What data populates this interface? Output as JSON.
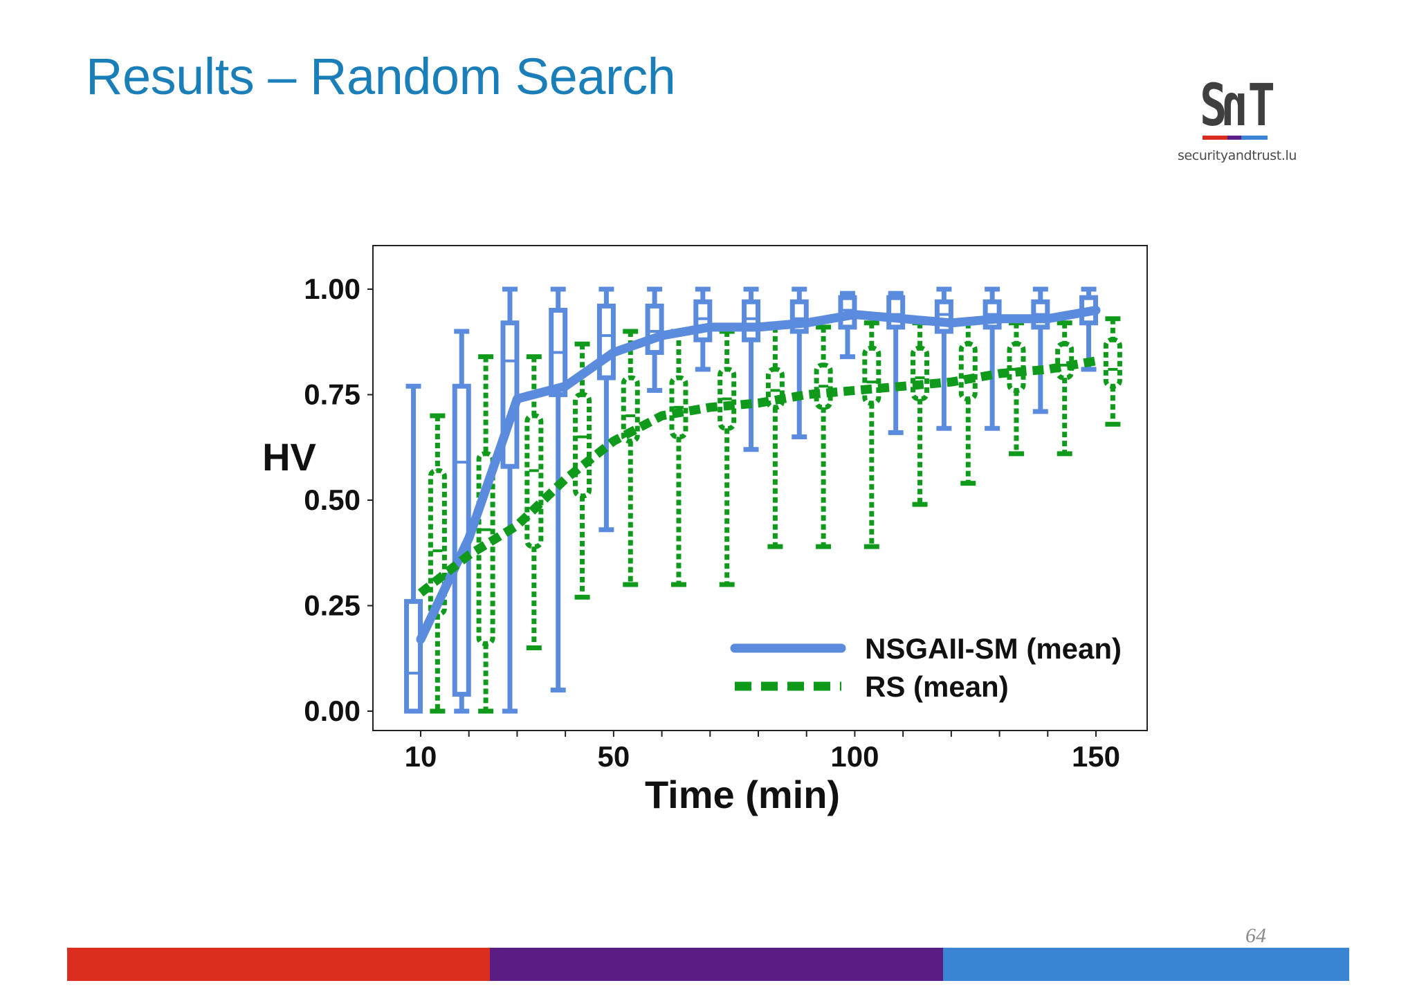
{
  "slide": {
    "title": "Results – Random Search",
    "page_number": "64"
  },
  "logo": {
    "mark": "SnT",
    "url": "securityandtrust.lu",
    "colors": [
      "#d92b1f",
      "#5c1f85",
      "#3b84d6"
    ]
  },
  "footer": {
    "colors": [
      "#db2e1f",
      "#5a1d84",
      "#3a84d4"
    ]
  },
  "chart_data": {
    "type": "line",
    "title": "",
    "xlabel": "Time (min)",
    "ylabel": "HV",
    "xlim": [
      0,
      160
    ],
    "ylim": [
      -0.05,
      1.05
    ],
    "xticks": [
      10,
      50,
      100,
      150
    ],
    "yticks": [
      0.0,
      0.25,
      0.5,
      0.75,
      1.0
    ],
    "ytick_labels": [
      "0.00",
      "0.25",
      "0.50",
      "0.75",
      "1.00"
    ],
    "x": [
      10,
      20,
      30,
      40,
      50,
      60,
      70,
      80,
      90,
      100,
      110,
      120,
      130,
      140,
      150
    ],
    "series": [
      {
        "name": "NSGAII-SM (mean)",
        "color": "#5b8bdd",
        "style": "solid",
        "mean": [
          0.17,
          0.41,
          0.74,
          0.77,
          0.85,
          0.89,
          0.91,
          0.91,
          0.92,
          0.94,
          0.93,
          0.92,
          0.93,
          0.93,
          0.95
        ],
        "box": [
          {
            "x": 8.5,
            "min": 0.0,
            "q1": 0.0,
            "median": 0.09,
            "q3": 0.26,
            "max": 0.77
          },
          {
            "x": 18.5,
            "min": 0.0,
            "q1": 0.04,
            "median": 0.59,
            "q3": 0.77,
            "max": 0.9
          },
          {
            "x": 28.5,
            "min": 0.0,
            "q1": 0.58,
            "median": 0.83,
            "q3": 0.92,
            "max": 1.0
          },
          {
            "x": 38.5,
            "min": 0.05,
            "q1": 0.75,
            "median": 0.85,
            "q3": 0.95,
            "max": 1.0
          },
          {
            "x": 48.5,
            "min": 0.43,
            "q1": 0.79,
            "median": 0.89,
            "q3": 0.96,
            "max": 1.0
          },
          {
            "x": 58.5,
            "min": 0.76,
            "q1": 0.85,
            "median": 0.9,
            "q3": 0.96,
            "max": 1.0
          },
          {
            "x": 68.5,
            "min": 0.81,
            "q1": 0.88,
            "median": 0.93,
            "q3": 0.97,
            "max": 1.0
          },
          {
            "x": 78.5,
            "min": 0.62,
            "q1": 0.88,
            "median": 0.93,
            "q3": 0.97,
            "max": 1.0
          },
          {
            "x": 88.5,
            "min": 0.65,
            "q1": 0.9,
            "median": 0.93,
            "q3": 0.97,
            "max": 1.0
          },
          {
            "x": 98.5,
            "min": 0.84,
            "q1": 0.91,
            "median": 0.95,
            "q3": 0.98,
            "max": 0.99
          },
          {
            "x": 108.5,
            "min": 0.66,
            "q1": 0.91,
            "median": 0.94,
            "q3": 0.98,
            "max": 0.99
          },
          {
            "x": 118.5,
            "min": 0.67,
            "q1": 0.9,
            "median": 0.94,
            "q3": 0.97,
            "max": 1.0
          },
          {
            "x": 128.5,
            "min": 0.67,
            "q1": 0.91,
            "median": 0.94,
            "q3": 0.97,
            "max": 1.0
          },
          {
            "x": 138.5,
            "min": 0.71,
            "q1": 0.91,
            "median": 0.94,
            "q3": 0.97,
            "max": 1.0
          },
          {
            "x": 148.5,
            "min": 0.81,
            "q1": 0.92,
            "median": 0.95,
            "q3": 0.98,
            "max": 1.0
          }
        ]
      },
      {
        "name": "RS (mean)",
        "color": "#109a1c",
        "style": "dashed",
        "mean": [
          0.28,
          0.37,
          0.44,
          0.55,
          0.64,
          0.7,
          0.72,
          0.73,
          0.75,
          0.76,
          0.77,
          0.78,
          0.8,
          0.81,
          0.83
        ],
        "box": [
          {
            "x": 13.5,
            "min": 0.0,
            "q1": 0.23,
            "median": 0.38,
            "q3": 0.57,
            "max": 0.7
          },
          {
            "x": 23.5,
            "min": 0.0,
            "q1": 0.16,
            "median": 0.43,
            "q3": 0.61,
            "max": 0.84
          },
          {
            "x": 33.5,
            "min": 0.15,
            "q1": 0.39,
            "median": 0.57,
            "q3": 0.7,
            "max": 0.84
          },
          {
            "x": 43.5,
            "min": 0.27,
            "q1": 0.51,
            "median": 0.65,
            "q3": 0.75,
            "max": 0.87
          },
          {
            "x": 53.5,
            "min": 0.3,
            "q1": 0.64,
            "median": 0.7,
            "q3": 0.79,
            "max": 0.9
          },
          {
            "x": 63.5,
            "min": 0.3,
            "q1": 0.65,
            "median": 0.72,
            "q3": 0.79,
            "max": 0.9
          },
          {
            "x": 73.5,
            "min": 0.3,
            "q1": 0.67,
            "median": 0.74,
            "q3": 0.81,
            "max": 0.9
          },
          {
            "x": 83.5,
            "min": 0.39,
            "q1": 0.72,
            "median": 0.76,
            "q3": 0.81,
            "max": 0.91
          },
          {
            "x": 93.5,
            "min": 0.39,
            "q1": 0.72,
            "median": 0.77,
            "q3": 0.82,
            "max": 0.91
          },
          {
            "x": 103.5,
            "min": 0.39,
            "q1": 0.73,
            "median": 0.78,
            "q3": 0.86,
            "max": 0.92
          },
          {
            "x": 113.5,
            "min": 0.49,
            "q1": 0.74,
            "median": 0.79,
            "q3": 0.86,
            "max": 0.92
          },
          {
            "x": 123.5,
            "min": 0.54,
            "q1": 0.74,
            "median": 0.79,
            "q3": 0.87,
            "max": 0.92
          },
          {
            "x": 133.5,
            "min": 0.61,
            "q1": 0.76,
            "median": 0.81,
            "q3": 0.87,
            "max": 0.92
          },
          {
            "x": 143.5,
            "min": 0.61,
            "q1": 0.79,
            "median": 0.82,
            "q3": 0.87,
            "max": 0.92
          },
          {
            "x": 153.5,
            "min": 0.68,
            "q1": 0.77,
            "median": 0.81,
            "q3": 0.88,
            "max": 0.93
          }
        ]
      }
    ],
    "legend": {
      "position": "bottom-right",
      "entries": [
        "NSGAII-SM (mean)",
        "RS (mean)"
      ]
    },
    "grid": false
  }
}
